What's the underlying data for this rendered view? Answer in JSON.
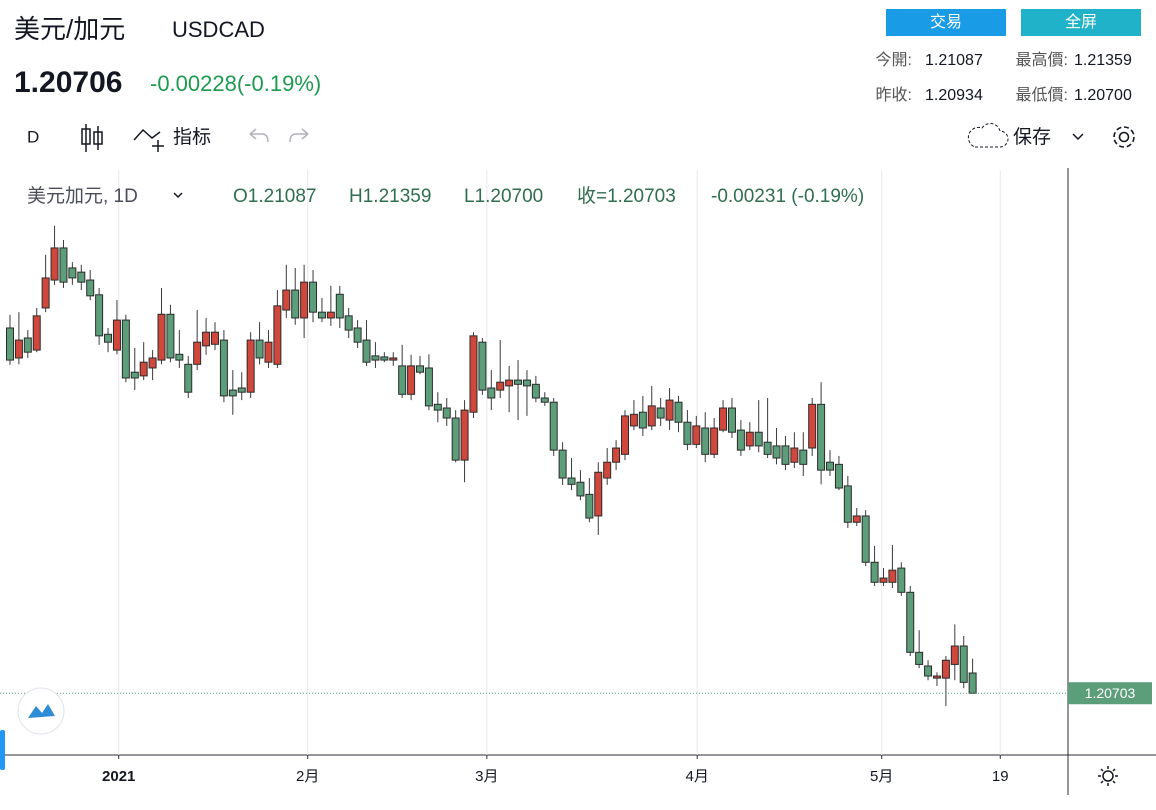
{
  "header": {
    "pair": "美元/加元",
    "symbol": "USDCAD",
    "price": "1.20706",
    "change": "-0.00228(-0.19%)",
    "buttons": [
      "交易",
      "全屏"
    ],
    "stats": [
      [
        "今開:",
        "1.21087",
        "最高價:",
        "1.21359"
      ],
      [
        "昨收:",
        "1.20934",
        "最低價:",
        "1.20700"
      ]
    ]
  },
  "toolbar": {
    "interval": "D",
    "indicators": "指标",
    "save": "保存"
  },
  "chart_data": {
    "type": "candlestick",
    "legend_title": "美元加元, 1D",
    "legend_values": [
      "O1.21087",
      "H1.21359",
      "L1.20700",
      "收=1.20703",
      "-0.00231 (-0.19%)"
    ],
    "up_color": "#d0483c",
    "down_color": "#5d9e7a",
    "open": [
      1.2764,
      1.2707,
      1.2745,
      1.2722,
      1.2802,
      1.2855,
      1.2916,
      1.2878,
      1.287,
      1.2855,
      1.2827,
      1.2752,
      1.2722,
      1.2779,
      1.268,
      1.2673,
      1.2688,
      1.2703,
      1.279,
      1.2714,
      1.2695,
      1.2695,
      1.273,
      1.2733,
      1.2741,
      1.2646,
      1.265,
      1.2642,
      1.2741,
      1.2699,
      1.2695,
      1.2798,
      1.2836,
      1.2783,
      1.2851,
      1.2794,
      1.2783,
      1.2828,
      1.2787,
      1.2764,
      1.2741,
      1.2711,
      1.2709,
      1.2703,
      1.2692,
      1.2638,
      1.2692,
      1.2688,
      1.2619,
      1.2612,
      1.2593,
      1.2513,
      1.2604,
      1.2737,
      1.265,
      1.2646,
      1.2654,
      1.2665,
      1.2665,
      1.2657,
      1.2631,
      1.2623,
      1.2532,
      1.2479,
      1.2471,
      1.2448,
      1.2407,
      1.2479,
      1.2509,
      1.2524,
      1.2578,
      1.2604,
      1.2578,
      1.2612,
      1.2589,
      1.2623,
      1.2585,
      1.2543,
      1.2574,
      1.2524,
      1.257,
      1.2612,
      1.257,
      1.254,
      1.2566,
      1.2547,
      1.254,
      1.254,
      1.2509,
      1.2532,
      1.2536,
      1.2619,
      1.2509,
      1.2505,
      1.2464,
      1.2395,
      1.2407,
      1.2319,
      1.2281,
      1.2281,
      1.2308,
      1.2262,
      1.2148,
      1.2122,
      1.2099,
      1.2099,
      1.2125,
      1.216,
      1.21087
    ],
    "high": [
      1.2789,
      1.2794,
      1.276,
      1.2802,
      1.2903,
      1.2958,
      1.2931,
      1.2889,
      1.2884,
      1.2874,
      1.284,
      1.2764,
      1.2817,
      1.2789,
      1.2726,
      1.2737,
      1.2722,
      1.284,
      1.2808,
      1.276,
      1.2711,
      1.2798,
      1.2783,
      1.2775,
      1.276,
      1.2684,
      1.268,
      1.2756,
      1.2775,
      1.276,
      1.2836,
      1.2884,
      1.2878,
      1.2884,
      1.2874,
      1.2821,
      1.2844,
      1.2844,
      1.2802,
      1.2779,
      1.2779,
      1.2737,
      1.2718,
      1.2718,
      1.2732,
      1.2713,
      1.2711,
      1.2714,
      1.2642,
      1.2631,
      1.2608,
      1.2627,
      1.2756,
      1.2745,
      1.2684,
      1.2741,
      1.2692,
      1.2703,
      1.2684,
      1.2673,
      1.2642,
      1.2631,
      1.2547,
      1.2517,
      1.2494,
      1.2479,
      1.2509,
      1.2536,
      1.2551,
      1.2608,
      1.2627,
      1.2635,
      1.2654,
      1.2631,
      1.265,
      1.2635,
      1.2608,
      1.2597,
      1.2604,
      1.2593,
      1.2627,
      1.2631,
      1.2589,
      1.2585,
      1.2627,
      1.2631,
      1.2574,
      1.2559,
      1.2566,
      1.2566,
      1.2631,
      1.2661,
      1.2532,
      1.2521,
      1.2483,
      1.2422,
      1.2418,
      1.235,
      1.2308,
      1.2352,
      1.2319,
      1.2274,
      1.219,
      1.2133,
      1.211,
      1.2141,
      1.2201,
      1.2179,
      1.21359
    ],
    "low": [
      1.2694,
      1.2695,
      1.2707,
      1.2718,
      1.2794,
      1.2846,
      1.284,
      1.2846,
      1.2836,
      1.2817,
      1.2732,
      1.2718,
      1.2714,
      1.2661,
      1.2646,
      1.2665,
      1.2665,
      1.2695,
      1.2699,
      1.2688,
      1.2631,
      1.2684,
      1.2713,
      1.2722,
      1.2623,
      1.2599,
      1.2627,
      1.2631,
      1.2695,
      1.2688,
      1.2688,
      1.2783,
      1.277,
      1.2745,
      1.2775,
      1.2775,
      1.2768,
      1.2764,
      1.2745,
      1.2726,
      1.2692,
      1.2688,
      1.2699,
      1.2692,
      1.2631,
      1.2627,
      1.2676,
      1.2608,
      1.2585,
      1.2578,
      1.2509,
      1.2471,
      1.2593,
      1.2637,
      1.2608,
      1.2631,
      1.2604,
      1.2589,
      1.2597,
      1.2623,
      1.2616,
      1.2521,
      1.2466,
      1.2456,
      1.2437,
      1.2395,
      1.2371,
      1.2466,
      1.2494,
      1.2513,
      1.257,
      1.2559,
      1.257,
      1.2578,
      1.257,
      1.2566,
      1.2532,
      1.2536,
      1.2509,
      1.2517,
      1.2566,
      1.2555,
      1.2521,
      1.2532,
      1.2528,
      1.2517,
      1.2505,
      1.2494,
      1.2498,
      1.2483,
      1.2521,
      1.2467,
      1.2483,
      1.2456,
      1.2384,
      1.2388,
      1.2312,
      1.2274,
      1.2274,
      1.227,
      1.2255,
      1.2141,
      1.2118,
      1.2095,
      1.2084,
      1.2046,
      1.2095,
      1.208,
      1.207
    ],
    "close": [
      1.2703,
      1.2741,
      1.2718,
      1.2787,
      1.2859,
      1.2916,
      1.2851,
      1.2859,
      1.2851,
      1.2825,
      1.2749,
      1.2737,
      1.2779,
      1.2669,
      1.2669,
      1.2699,
      1.2707,
      1.279,
      1.2707,
      1.2703,
      1.2642,
      1.2737,
      1.2756,
      1.2756,
      1.2635,
      1.2635,
      1.2642,
      1.2741,
      1.2707,
      1.2737,
      1.2806,
      1.2836,
      1.2783,
      1.2851,
      1.2794,
      1.2783,
      1.2794,
      1.2783,
      1.276,
      1.2737,
      1.2699,
      1.2703,
      1.2703,
      1.2707,
      1.2638,
      1.2692,
      1.268,
      1.2616,
      1.2608,
      1.2593,
      1.2513,
      1.2608,
      1.2749,
      1.2646,
      1.2631,
      1.2661,
      1.2665,
      1.2657,
      1.2654,
      1.2631,
      1.2623,
      1.2532,
      1.2479,
      1.2467,
      1.2445,
      1.2403,
      1.249,
      1.2509,
      1.2536,
      1.2597,
      1.26,
      1.2574,
      1.2616,
      1.2593,
      1.2627,
      1.2585,
      1.2543,
      1.2578,
      1.2524,
      1.2574,
      1.2612,
      1.2566,
      1.2532,
      1.2566,
      1.254,
      1.2524,
      1.2517,
      1.2505,
      1.2536,
      1.2505,
      1.2619,
      1.2494,
      1.2494,
      1.246,
      1.2395,
      1.2407,
      1.2319,
      1.2281,
      1.2289,
      1.2304,
      1.2262,
      1.2148,
      1.2125,
      1.2103,
      1.2103,
      1.2133,
      1.216,
      1.2091,
      1.20703
    ],
    "xlim": [
      -1.12,
      118.7
    ],
    "xticks": [
      {
        "value": 12.2,
        "label": "2021"
      },
      {
        "value": 33.4,
        "label": "2月"
      },
      {
        "value": 53.5,
        "label": "3月"
      },
      {
        "value": 77.1,
        "label": "4月"
      },
      {
        "value": 97.8,
        "label": "5月"
      },
      {
        "value": 111.1,
        "label": "19"
      }
    ],
    "ylim": [
      1.1953,
      1.3064
    ],
    "grid": true
  }
}
